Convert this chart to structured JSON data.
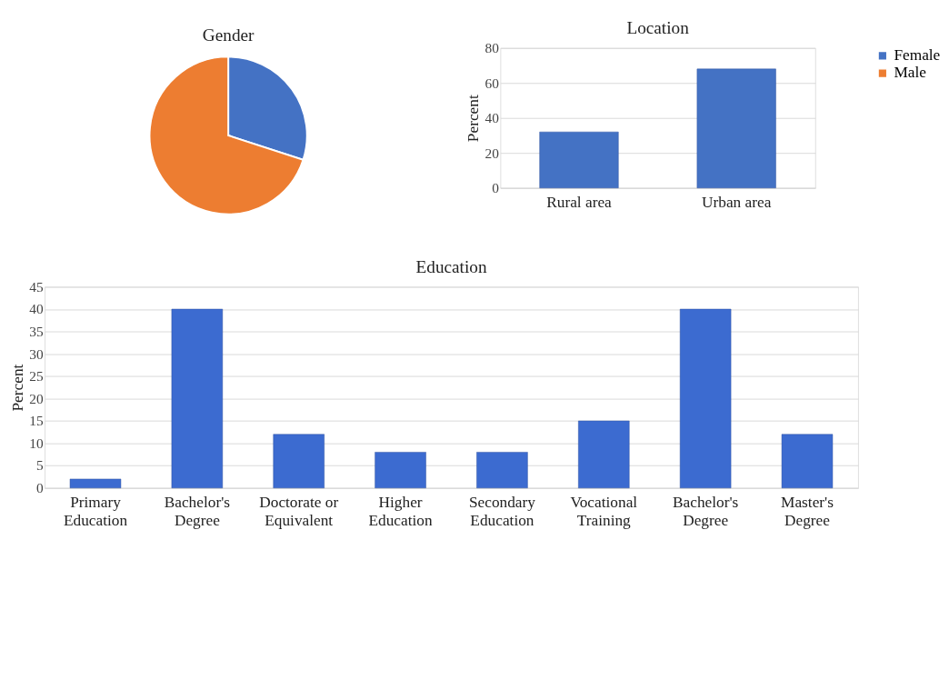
{
  "chart_data": [
    {
      "type": "pie",
      "title": "Gender",
      "categories": [
        "Female",
        "Male"
      ],
      "values": [
        30,
        70
      ],
      "colors": [
        "#4472c4",
        "#ed7d31"
      ],
      "legend": "right"
    },
    {
      "type": "bar",
      "title": "Location",
      "ylabel": "Percent",
      "categories": [
        "Rural area",
        "Urban area"
      ],
      "values": [
        32,
        68
      ],
      "color": "#4472c4",
      "ylim": [
        0,
        80
      ],
      "yticks": [
        0,
        20,
        40,
        60,
        80
      ],
      "grid": "y"
    },
    {
      "type": "bar",
      "title": "Education",
      "ylabel": "Percent",
      "categories": [
        "Primary\nEducation",
        "Bachelor's\nDegree",
        "Doctorate or\nEquivalent",
        "Higher\nEducation",
        "Secondary\nEducation",
        "Vocational\nTraining",
        "Bachelor's\nDegree",
        "Master's\nDegree"
      ],
      "values": [
        2,
        40,
        12,
        8,
        8,
        15,
        40,
        12
      ],
      "color": "#3c6bd0",
      "ylim": [
        0,
        45
      ],
      "yticks": [
        0,
        5,
        10,
        15,
        20,
        25,
        30,
        35,
        40,
        45
      ],
      "grid": "y"
    }
  ]
}
